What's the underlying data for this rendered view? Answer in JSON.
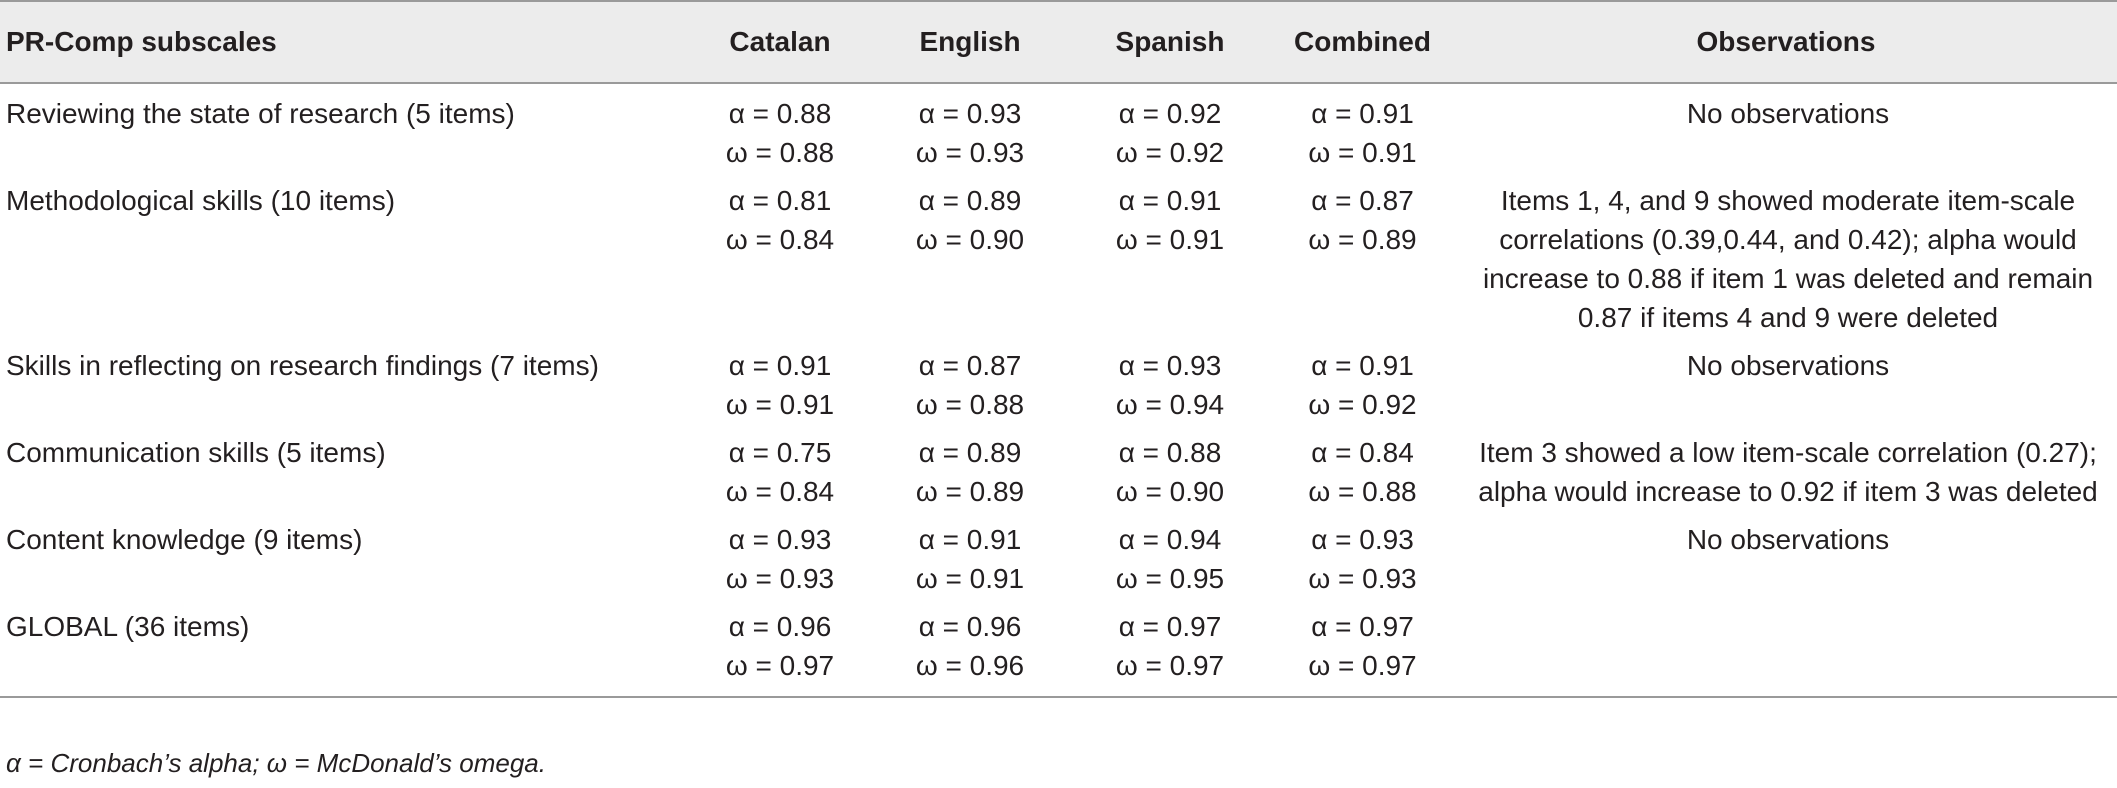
{
  "table": {
    "headers": {
      "subscale": "PR-Comp subscales",
      "catalan": "Catalan",
      "english": "English",
      "spanish": "Spanish",
      "combined": "Combined",
      "observations": "Observations"
    },
    "rows": [
      {
        "subscale": "Reviewing the state of research (5 items)",
        "catalan": [
          "α = 0.88",
          "ω = 0.88"
        ],
        "english": [
          "α = 0.93",
          "ω = 0.93"
        ],
        "spanish": [
          "α = 0.92",
          "ω = 0.92"
        ],
        "combined": [
          "α = 0.91",
          "ω = 0.91"
        ],
        "observations": "No observations"
      },
      {
        "subscale": "Methodological skills (10 items)",
        "catalan": [
          "α = 0.81",
          "ω = 0.84"
        ],
        "english": [
          "α = 0.89",
          "ω = 0.90"
        ],
        "spanish": [
          "α = 0.91",
          "ω = 0.91"
        ],
        "combined": [
          "α = 0.87",
          "ω = 0.89"
        ],
        "observations": "Items 1, 4, and 9 showed moderate item-scale correlations (0.39,0.44, and 0.42); alpha would increase to 0.88 if item 1 was deleted and remain 0.87 if items 4 and 9 were deleted"
      },
      {
        "subscale": "Skills in reflecting on research findings (7 items)",
        "catalan": [
          "α = 0.91",
          "ω = 0.91"
        ],
        "english": [
          "α = 0.87",
          "ω = 0.88"
        ],
        "spanish": [
          "α = 0.93",
          "ω = 0.94"
        ],
        "combined": [
          "α = 0.91",
          "ω = 0.92"
        ],
        "observations": "No observations"
      },
      {
        "subscale": "Communication skills (5 items)",
        "catalan": [
          "α = 0.75",
          "ω = 0.84"
        ],
        "english": [
          "α = 0.89",
          "ω = 0.89"
        ],
        "spanish": [
          "α = 0.88",
          "ω = 0.90"
        ],
        "combined": [
          "α = 0.84",
          "ω = 0.88"
        ],
        "observations": "Item 3 showed a low item-scale correlation (0.27); alpha would increase to 0.92 if item 3 was deleted"
      },
      {
        "subscale": "Content knowledge (9 items)",
        "catalan": [
          "α = 0.93",
          "ω = 0.93"
        ],
        "english": [
          "α = 0.91",
          "ω = 0.91"
        ],
        "spanish": [
          "α = 0.94",
          "ω = 0.95"
        ],
        "combined": [
          "α = 0.93",
          "ω = 0.93"
        ],
        "observations": "No observations"
      },
      {
        "subscale": "GLOBAL (36 items)",
        "catalan": [
          "α = 0.96",
          "ω = 0.97"
        ],
        "english": [
          "α = 0.96",
          "ω = 0.96"
        ],
        "spanish": [
          "α = 0.97",
          "ω = 0.97"
        ],
        "combined": [
          "α = 0.97",
          "ω = 0.97"
        ],
        "observations": ""
      }
    ],
    "footnote": "α = Cronbach’s alpha; ω = McDonald’s omega."
  }
}
